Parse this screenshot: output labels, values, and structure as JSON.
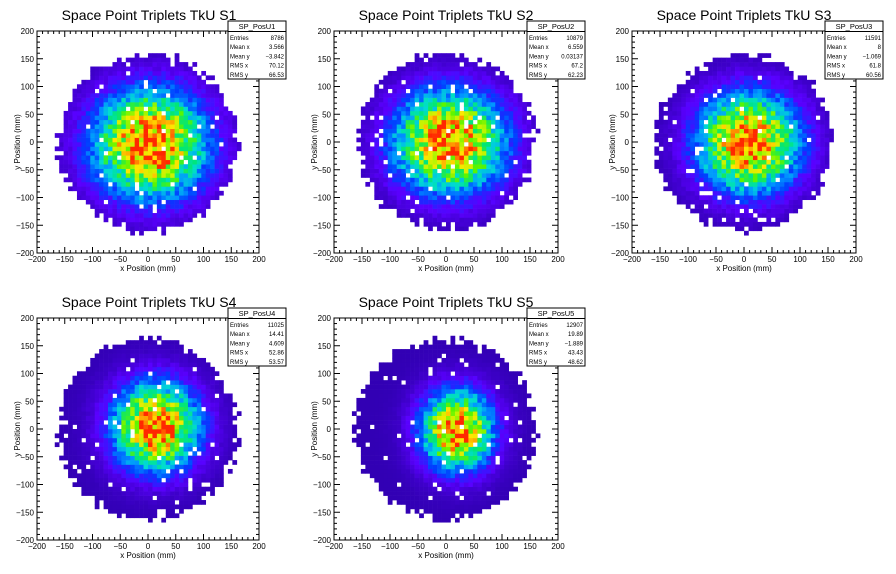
{
  "chart_data": [
    {
      "type": "heatmap",
      "title": "Space Point Triplets TkU S1",
      "xlabel": "x Position (mm)",
      "ylabel": "y Position (mm)",
      "xlim": [
        -200,
        200
      ],
      "ylim": [
        -200,
        200
      ],
      "xticks": [
        "−200",
        "−150",
        "−100",
        "−50",
        "0",
        "50",
        "100",
        "150",
        "200"
      ],
      "yticks": [
        "−200",
        "−150",
        "−100",
        "−50",
        "0",
        "50",
        "100",
        "150",
        "200"
      ],
      "stats": {
        "name": "SP_PosU1",
        "rows": [
          {
            "label": "Entries",
            "value": "8786"
          },
          {
            "label": "Mean x",
            "value": "3.566"
          },
          {
            "label": "Mean y",
            "value": "−3.842"
          },
          {
            "label": "RMS x",
            "value": "70.12"
          },
          {
            "label": "RMS y",
            "value": "66.53"
          }
        ]
      },
      "distribution": {
        "radius": 160,
        "mean_x": 3.566,
        "mean_y": -3.842,
        "rms_x": 70.12,
        "rms_y": 66.53,
        "seed": 11
      }
    },
    {
      "type": "heatmap",
      "title": "Space Point Triplets TkU S2",
      "xlabel": "x Position (mm)",
      "ylabel": "y Position (mm)",
      "xlim": [
        -200,
        200
      ],
      "ylim": [
        -200,
        200
      ],
      "xticks": [
        "−200",
        "−150",
        "−100",
        "−50",
        "0",
        "50",
        "100",
        "150",
        "200"
      ],
      "yticks": [
        "−200",
        "−150",
        "−100",
        "−50",
        "0",
        "50",
        "100",
        "150",
        "200"
      ],
      "stats": {
        "name": "SP_PosU2",
        "rows": [
          {
            "label": "Entries",
            "value": "10879"
          },
          {
            "label": "Mean x",
            "value": "6.559"
          },
          {
            "label": "Mean y",
            "value": "0.03137"
          },
          {
            "label": "RMS x",
            "value": "67.2"
          },
          {
            "label": "RMS y",
            "value": "62.23"
          }
        ]
      },
      "distribution": {
        "radius": 158,
        "mean_x": 6.559,
        "mean_y": 0.03137,
        "rms_x": 67.2,
        "rms_y": 62.23,
        "seed": 23
      }
    },
    {
      "type": "heatmap",
      "title": "Space Point Triplets TkU S3",
      "xlabel": "x Position (mm)",
      "ylabel": "y Position (mm)",
      "xlim": [
        -200,
        200
      ],
      "ylim": [
        -200,
        200
      ],
      "xticks": [
        "−200",
        "−150",
        "−100",
        "−50",
        "0",
        "50",
        "100",
        "150",
        "200"
      ],
      "yticks": [
        "−200",
        "−150",
        "−100",
        "−50",
        "0",
        "50",
        "100",
        "150",
        "200"
      ],
      "stats": {
        "name": "SP_PosU3",
        "rows": [
          {
            "label": "Entries",
            "value": "11591"
          },
          {
            "label": "Mean x",
            "value": "8"
          },
          {
            "label": "Mean y",
            "value": "−1.069"
          },
          {
            "label": "RMS x",
            "value": "61.8"
          },
          {
            "label": "RMS y",
            "value": "60.56"
          }
        ]
      },
      "distribution": {
        "radius": 158,
        "mean_x": 8,
        "mean_y": -1.069,
        "rms_x": 61.8,
        "rms_y": 60.56,
        "seed": 37
      }
    },
    {
      "type": "heatmap",
      "title": "Space Point Triplets TkU S4",
      "xlabel": "x Position (mm)",
      "ylabel": "y Position (mm)",
      "xlim": [
        -200,
        200
      ],
      "ylim": [
        -200,
        200
      ],
      "xticks": [
        "−200",
        "−150",
        "−100",
        "−50",
        "0",
        "50",
        "100",
        "150",
        "200"
      ],
      "yticks": [
        "−200",
        "−150",
        "−100",
        "−50",
        "0",
        "50",
        "100",
        "150",
        "200"
      ],
      "stats": {
        "name": "SP_PosU4",
        "rows": [
          {
            "label": "Entries",
            "value": "11025"
          },
          {
            "label": "Mean x",
            "value": "14.41"
          },
          {
            "label": "Mean y",
            "value": "4.609"
          },
          {
            "label": "RMS x",
            "value": "52.86"
          },
          {
            "label": "RMS y",
            "value": "53.57"
          }
        ]
      },
      "distribution": {
        "radius": 162,
        "mean_x": 14.41,
        "mean_y": 4.609,
        "rms_x": 52.86,
        "rms_y": 53.57,
        "seed": 41
      }
    },
    {
      "type": "heatmap",
      "title": "Space Point Triplets TkU S5",
      "xlabel": "x Position (mm)",
      "ylabel": "y Position (mm)",
      "xlim": [
        -200,
        200
      ],
      "ylim": [
        -200,
        200
      ],
      "xticks": [
        "−200",
        "−150",
        "−100",
        "−50",
        "0",
        "50",
        "100",
        "150",
        "200"
      ],
      "yticks": [
        "−200",
        "−150",
        "−100",
        "−50",
        "0",
        "50",
        "100",
        "150",
        "200"
      ],
      "stats": {
        "name": "SP_PosU5",
        "rows": [
          {
            "label": "Entries",
            "value": "12907"
          },
          {
            "label": "Mean x",
            "value": "19.89"
          },
          {
            "label": "Mean y",
            "value": "−1.889"
          },
          {
            "label": "RMS x",
            "value": "43.43"
          },
          {
            "label": "RMS y",
            "value": "48.62"
          }
        ]
      },
      "distribution": {
        "radius": 162,
        "mean_x": 19.89,
        "mean_y": -1.889,
        "rms_x": 43.43,
        "rms_y": 48.62,
        "seed": 53
      }
    }
  ]
}
